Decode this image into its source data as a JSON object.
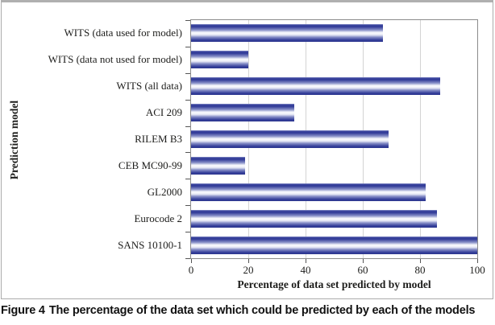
{
  "figure": {
    "caption_label": "Figure 4",
    "caption_text": "The percentage of the data set which could be predicted by each of the models"
  },
  "chart_data": {
    "type": "bar",
    "orientation": "horizontal",
    "categories": [
      "WITS (data used for model)",
      "WITS (data not used for model)",
      "WITS (all data)",
      "ACI 209",
      "RILEM B3",
      "CEB MC90-99",
      "GL2000",
      "Eurocode 2",
      "SANS 10100-1"
    ],
    "values": [
      67,
      20,
      87,
      36,
      69,
      19,
      82,
      86,
      100
    ],
    "xlabel": "Percentage of data set predicted by model",
    "ylabel": "Prediction model",
    "xlim": [
      0,
      100
    ],
    "xticks": [
      0,
      20,
      40,
      60,
      80,
      100
    ],
    "grid": true,
    "legend": false,
    "colors": {
      "bar_dark": "#333d99",
      "bar_dark_edge": "#2c368f",
      "bar_mid": "#8890c8",
      "bar_pale": "#dfe2f2",
      "bar_light": "#f6f7fc",
      "gridline": "#d4d4d4",
      "plot_border": "#8b8b8b",
      "frame_border": "#ababab",
      "text": "#1d1d1b"
    }
  }
}
